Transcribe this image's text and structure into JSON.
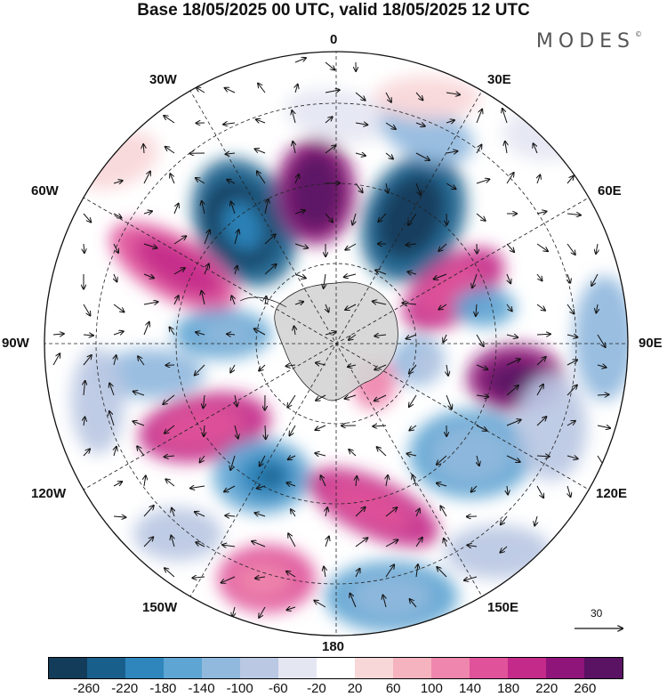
{
  "title": "Base 18/05/2025 00 UTC, valid 18/05/2025 12 UTC",
  "logo": "MODES",
  "logo_mark": "©",
  "longitude_labels": {
    "l0": "0",
    "l30e": "30E",
    "l60e": "60E",
    "l90e": "90E",
    "l120e": "120E",
    "l150e": "150E",
    "l180": "180",
    "l150w": "150W",
    "l120w": "120W",
    "l90w": "90W",
    "l60w": "60W",
    "l30w": "30W"
  },
  "vector_reference": "30",
  "colorbar": {
    "colors": [
      "#123c5a",
      "#195f8c",
      "#2f86bd",
      "#5ea5d3",
      "#90b9dd",
      "#bac8e3",
      "#e4e6f2",
      "#ffffff",
      "#f8d7d9",
      "#f5b3c0",
      "#ef86ad",
      "#e0529a",
      "#c42a8a",
      "#8f157a",
      "#5a1263"
    ],
    "ticks": [
      "-260",
      "-220",
      "-180",
      "-140",
      "-100",
      "-60",
      "-20",
      "20",
      "60",
      "100",
      "140",
      "180",
      "220",
      "260"
    ]
  },
  "map_colors": {
    "land": "#d4d4d4",
    "outline": "#111111",
    "grid": "#222222"
  }
}
